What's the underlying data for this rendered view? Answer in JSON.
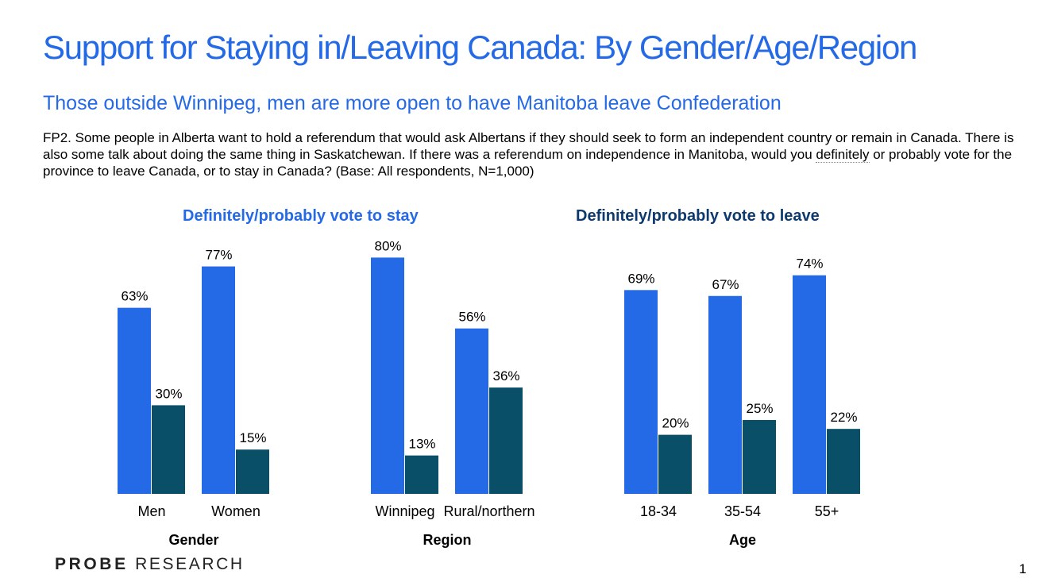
{
  "title": "Support for Staying in/Leaving Canada: By Gender/Age/Region",
  "subtitle": "Those outside Winnipeg, men are more open to have Manitoba leave Confederation",
  "question": {
    "before": "FP2. Some people in Alberta want to hold a referendum that would ask Albertans if they should seek to form an independent country or remain in Canada. There is also some talk about doing the same thing in Saskatchewan. If there was a referendum on independence in Manitoba, would you ",
    "underlined": "definitely",
    "after": " or probably vote for the province to leave Canada, or to stay in Canada? (Base: All respondents, N=1,000)"
  },
  "brand": {
    "bold": "PROBE",
    "rest": "RESEARCH"
  },
  "slide_number": "1",
  "colors": {
    "stay": "#2469e6",
    "leave": "#0a4f68",
    "title": "#2469e6",
    "leave_legend": "#0d3a6e"
  },
  "chart_data": {
    "type": "bar",
    "title": "",
    "ylabel": "",
    "ylim": [
      0,
      100
    ],
    "unit": "%",
    "grid": false,
    "legend": "top",
    "series_names": [
      "Definitely/probably vote to stay",
      "Definitely/probably vote to leave"
    ],
    "groups": [
      {
        "name": "Gender",
        "categories": [
          "Men",
          "Women"
        ],
        "series": [
          {
            "name": "Definitely/probably vote to stay",
            "values": [
              63,
              77
            ]
          },
          {
            "name": "Definitely/probably vote to leave",
            "values": [
              30,
              15
            ]
          }
        ]
      },
      {
        "name": "Region",
        "categories": [
          "Winnipeg",
          "Rural/northern"
        ],
        "series": [
          {
            "name": "Definitely/probably vote to stay",
            "values": [
              80,
              56
            ]
          },
          {
            "name": "Definitely/probably vote to leave",
            "values": [
              13,
              36
            ]
          }
        ]
      },
      {
        "name": "Age",
        "categories": [
          "18-34",
          "35-54",
          "55+"
        ],
        "series": [
          {
            "name": "Definitely/probably vote to stay",
            "values": [
              69,
              67,
              74
            ]
          },
          {
            "name": "Definitely/probably vote to leave",
            "values": [
              20,
              25,
              22
            ]
          }
        ]
      }
    ]
  }
}
